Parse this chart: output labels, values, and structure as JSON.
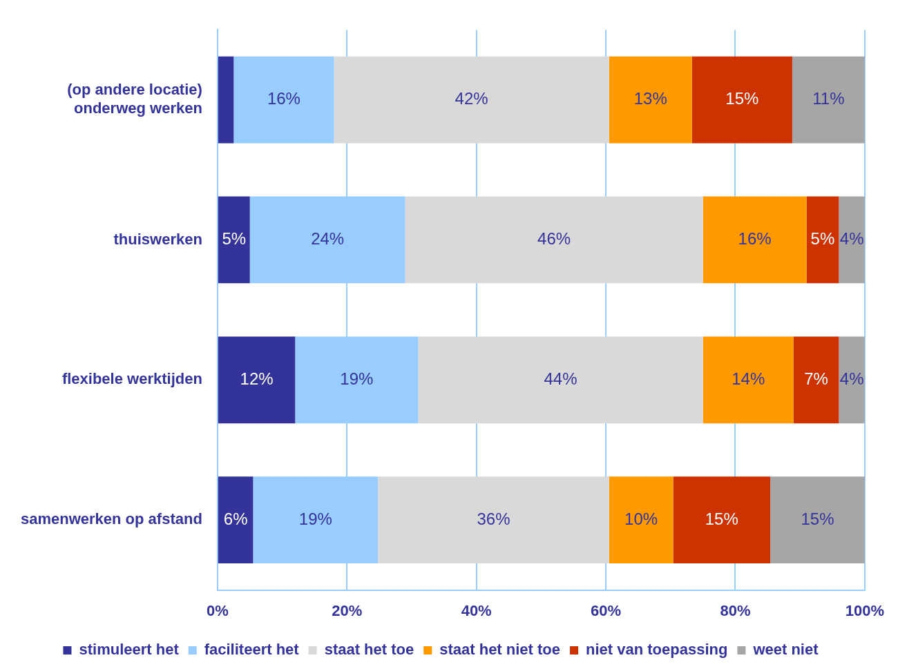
{
  "chart_data": {
    "type": "bar",
    "orientation": "horizontal",
    "stacked": true,
    "categories": [
      "(op andere locatie)\nonderweg werken",
      "thuiswerken",
      "flexibele werktijden",
      "samenwerken op afstand"
    ],
    "series": [
      {
        "name": "stimuleert het",
        "color": "#333399",
        "values": [
          2.5,
          5,
          12,
          5.5
        ],
        "value_labels": [
          null,
          "5%",
          "12%",
          "6%"
        ]
      },
      {
        "name": "faciliteert het",
        "color": "#99ccff",
        "values": [
          15.5,
          24,
          19,
          19.3
        ],
        "value_labels": [
          "16%",
          "24%",
          "19%",
          "19%"
        ]
      },
      {
        "name": "staat het toe",
        "color": "#d9d9d9",
        "values": [
          42.5,
          46,
          44,
          35.7
        ],
        "value_labels": [
          "42%",
          "46%",
          "44%",
          "36%"
        ]
      },
      {
        "name": "staat het niet toe",
        "color": "#ff9900",
        "values": [
          12.8,
          16,
          14,
          9.9
        ],
        "value_labels": [
          "13%",
          "16%",
          "14%",
          "10%"
        ]
      },
      {
        "name": "niet van toepassing",
        "color": "#cc3300",
        "values": [
          15.5,
          5,
          7,
          15
        ],
        "value_labels": [
          "15%",
          "5%",
          "7%",
          "15%"
        ]
      },
      {
        "name": "weet niet",
        "color": "#a6a6a6",
        "values": [
          11.2,
          4,
          4,
          14.6
        ],
        "value_labels": [
          "11%",
          "4%",
          "4%",
          "15%"
        ]
      }
    ],
    "xlim": [
      0,
      100
    ],
    "xticks": [
      {
        "value": 0,
        "label": "0%"
      },
      {
        "value": 20,
        "label": "20%"
      },
      {
        "value": 40,
        "label": "40%"
      },
      {
        "value": 60,
        "label": "60%"
      },
      {
        "value": 80,
        "label": "80%"
      },
      {
        "value": 100,
        "label": "100%"
      }
    ],
    "grid": "x",
    "legend": "bottom"
  }
}
